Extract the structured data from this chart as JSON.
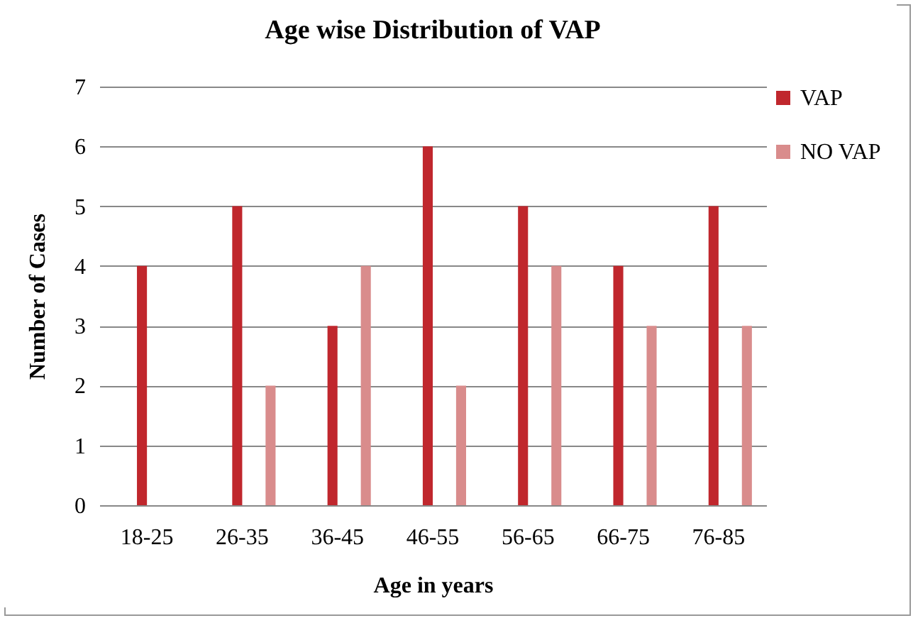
{
  "chart_data": {
    "type": "bar",
    "title": "Age wise Distribution of VAP",
    "xlabel": "Age in years",
    "ylabel": "Number of Cases",
    "categories": [
      "18-25",
      "26-35",
      "36-45",
      "46-55",
      "56-65",
      "66-75",
      "76-85"
    ],
    "series": [
      {
        "name": "VAP",
        "color": "#c0272d",
        "values": [
          4,
          5,
          3,
          6,
          5,
          4,
          5
        ]
      },
      {
        "name": "NO VAP",
        "color": "#d98c8c",
        "values": [
          0,
          2,
          4,
          2,
          4,
          3,
          3
        ]
      }
    ],
    "ylim": [
      0,
      7
    ],
    "yticks": [
      0,
      1,
      2,
      3,
      4,
      5,
      6,
      7
    ],
    "grid": "y",
    "legend": "right"
  }
}
